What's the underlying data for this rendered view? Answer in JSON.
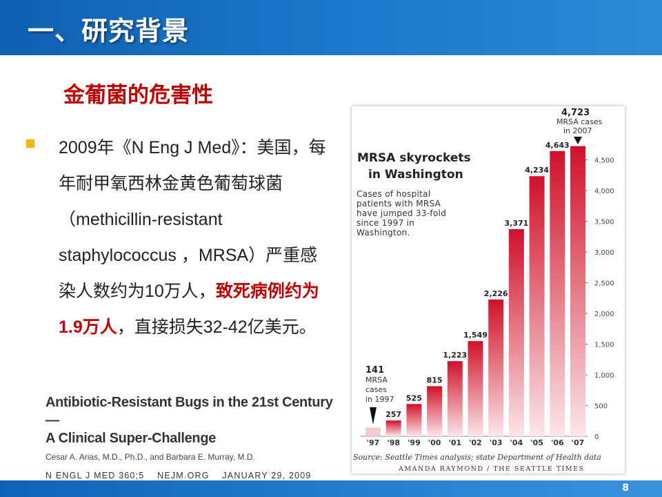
{
  "header": {
    "title": "一、研究背景"
  },
  "subtitle": "金葡菌的危害性",
  "bullet": {
    "text_before": "2009年《N Eng J Med》：美国，每年耐甲氧西林金黄色葡萄球菌（methicillin-resistant staphylococcus ，MRSA）严重感染人数约为10万人，",
    "highlight": "致死病例约为1.9万人",
    "text_after": "，直接损失32-42亿美元。"
  },
  "reference": {
    "title_line1": "Antibiotic-Resistant Bugs in the 21st Century —",
    "title_line2": "A Clinical Super-Challenge",
    "authors": "Cesar A. Arias, M.D., Ph.D., and Barbara E. Murray, M.D.",
    "journal": "N ENGL J MED 360;5    NEJM.ORG    JANUARY 29, 2009"
  },
  "chart_data": {
    "type": "bar",
    "title": "MRSA skyrockets in Washington",
    "description_lines": [
      "Cases of hospital",
      "patients with MRSA",
      "have jumped 33-fold",
      "since 1997 in",
      "Washington."
    ],
    "categories": [
      "'97",
      "'98",
      "'99",
      "'00",
      "'01",
      "'02",
      "'03",
      "'04",
      "'05",
      "'06",
      "'07"
    ],
    "values": [
      141,
      257,
      525,
      815,
      1223,
      1549,
      2226,
      3371,
      4234,
      4643,
      4723
    ],
    "value_labels": [
      "141",
      "257",
      "525",
      "815",
      "1,223",
      "1,549",
      "2,226",
      "3,371",
      "4,234",
      "4,643",
      "4,723"
    ],
    "yticks": [
      "0",
      "500",
      "1,000",
      "1,500",
      "2,000",
      "2,500",
      "3,000",
      "3,500",
      "4,000",
      "4,500"
    ],
    "ylim": [
      0,
      5000
    ],
    "annotation_start": {
      "label": "MRSA cases in 1997",
      "lines": [
        "MRSA",
        "cases",
        "in 1997"
      ]
    },
    "annotation_end": {
      "label": "MRSA cases in 2007",
      "lines": [
        "MRSA cases",
        "in 2007"
      ]
    },
    "source": "Source: Seattle Times analysis; state Department of Health data",
    "credit": "AMANDA RAYMOND / THE SEATTLE TIMES",
    "bar_color": "#d0112b"
  },
  "footer": {
    "page_number": "8"
  }
}
